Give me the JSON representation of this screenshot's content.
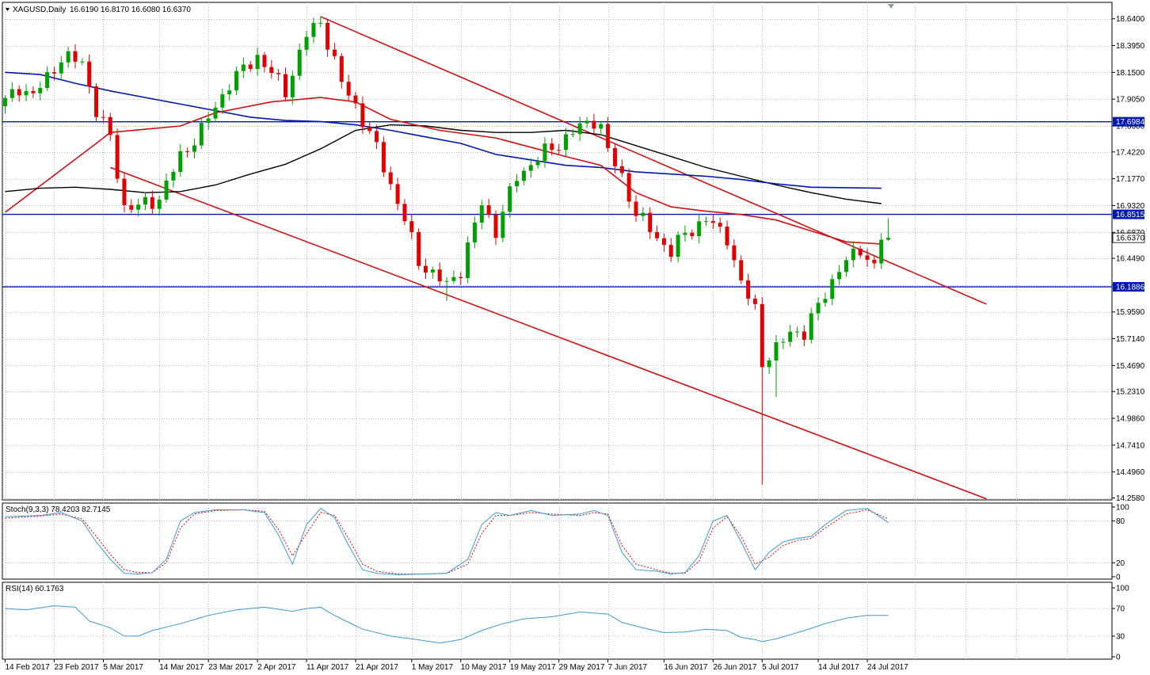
{
  "header": {
    "symbol": "XAGUSD,Daily",
    "ohlc": "16.6190 16.8170 16.6080 16.6370",
    "stoch_label": "Stoch(9,3,3) 78.4203 82.7145",
    "rsi_label": "RSI(14) 60.1763"
  },
  "colors": {
    "bull": "#00a000",
    "bear": "#e00000",
    "ma_red": "#d01010",
    "ma_blue": "#0018b0",
    "ma_black": "#000000",
    "hline": "#0018b0",
    "trend": "#d01010",
    "grid": "#b8b8b8"
  },
  "chart_data": {
    "type": "candlestick",
    "price_ticks": [
      "18.6400",
      "18.3950",
      "18.1500",
      "17.9050",
      "17.6600",
      "17.4220",
      "17.1770",
      "16.9320",
      "16.6870",
      "16.4490",
      "16.2040",
      "15.9590",
      "15.7140",
      "15.4690",
      "15.2310",
      "14.9860",
      "14.7410",
      "14.4960",
      "14.2580"
    ],
    "price_range": [
      14.24,
      18.79
    ],
    "level_labels": [
      {
        "label": "17.6984",
        "value": 17.6984
      },
      {
        "label": "16.8515",
        "value": 16.8515
      },
      {
        "label": "16.1886",
        "value": 16.1886
      }
    ],
    "current_price": {
      "label": "16.6370",
      "value": 16.637
    },
    "date_labels": [
      {
        "label": "14 Feb 2017",
        "i": 0
      },
      {
        "label": "23 Feb 2017",
        "i": 7
      },
      {
        "label": "5 Mar 2017",
        "i": 14
      },
      {
        "label": "14 Mar 2017",
        "i": 22
      },
      {
        "label": "23 Mar 2017",
        "i": 29
      },
      {
        "label": "2 Apr 2017",
        "i": 36
      },
      {
        "label": "11 Apr 2017",
        "i": 43
      },
      {
        "label": "21 Apr 2017",
        "i": 50
      },
      {
        "label": "1 May 2017",
        "i": 58
      },
      {
        "label": "10 May 2017",
        "i": 65
      },
      {
        "label": "19 May 2017",
        "i": 72
      },
      {
        "label": "29 May 2017",
        "i": 79
      },
      {
        "label": "7 Jun 2017",
        "i": 86
      },
      {
        "label": "16 Jun 2017",
        "i": 94
      },
      {
        "label": "26 Jun 2017",
        "i": 101
      },
      {
        "label": "5 Jul 2017",
        "i": 108
      },
      {
        "label": "14 Jul 2017",
        "i": 116
      },
      {
        "label": "24 Jul 2017",
        "i": 123
      }
    ],
    "anchors": [
      [
        0,
        17.88
      ],
      [
        2,
        18.02
      ],
      [
        4,
        17.93
      ],
      [
        8,
        18.28
      ],
      [
        11,
        18.25
      ],
      [
        13,
        17.8
      ],
      [
        15,
        17.55
      ],
      [
        17,
        16.92
      ],
      [
        19,
        16.92
      ],
      [
        22,
        17.0
      ],
      [
        25,
        17.38
      ],
      [
        28,
        17.62
      ],
      [
        32,
        18.05
      ],
      [
        36,
        18.3
      ],
      [
        40,
        17.98
      ],
      [
        43,
        18.49
      ],
      [
        45,
        18.62
      ],
      [
        48,
        18.05
      ],
      [
        50,
        17.85
      ],
      [
        53,
        17.45
      ],
      [
        57,
        16.8
      ],
      [
        59,
        16.42
      ],
      [
        63,
        16.2
      ],
      [
        65,
        16.35
      ],
      [
        68,
        16.95
      ],
      [
        70,
        16.7
      ],
      [
        73,
        17.2
      ],
      [
        77,
        17.42
      ],
      [
        79,
        17.5
      ],
      [
        82,
        17.65
      ],
      [
        84,
        17.72
      ],
      [
        85,
        17.65
      ],
      [
        86,
        17.42
      ],
      [
        88,
        17.2
      ],
      [
        90,
        16.85
      ],
      [
        92,
        16.72
      ],
      [
        95,
        16.5
      ],
      [
        97,
        16.68
      ],
      [
        100,
        16.8
      ],
      [
        103,
        16.65
      ],
      [
        105,
        16.2
      ],
      [
        107,
        16.0
      ],
      [
        108,
        15.5
      ],
      [
        110,
        15.6
      ],
      [
        112,
        15.8
      ],
      [
        114,
        15.75
      ],
      [
        117,
        16.15
      ],
      [
        120,
        16.42
      ],
      [
        122,
        16.55
      ],
      [
        124,
        16.35
      ],
      [
        125,
        16.619
      ],
      [
        126,
        16.637
      ]
    ],
    "extremes": [
      {
        "i": 45,
        "high": 18.66
      },
      {
        "i": 108,
        "low": 14.38
      },
      {
        "i": 110,
        "low": 15.18
      },
      {
        "i": 63,
        "low": 16.06
      }
    ],
    "horizontal_levels": [
      17.6984,
      16.8515,
      16.1886
    ],
    "trendlines": [
      {
        "from": [
          45,
          18.66
        ],
        "to": [
          140,
          16.03
        ]
      },
      {
        "from": [
          15,
          17.28
        ],
        "to": [
          140,
          14.25
        ]
      },
      {
        "from": [
          0,
          16.87
        ],
        "to": [
          13,
          17.5
        ]
      }
    ],
    "ma_red_anchors": [
      [
        13,
        17.5
      ],
      [
        15,
        17.6
      ],
      [
        25,
        17.66
      ],
      [
        30,
        17.78
      ],
      [
        38,
        17.88
      ],
      [
        45,
        17.92
      ],
      [
        50,
        17.88
      ],
      [
        55,
        17.72
      ],
      [
        62,
        17.62
      ],
      [
        70,
        17.55
      ],
      [
        80,
        17.38
      ],
      [
        85,
        17.3
      ],
      [
        90,
        17.05
      ],
      [
        95,
        16.92
      ],
      [
        100,
        16.88
      ],
      [
        105,
        16.85
      ],
      [
        110,
        16.8
      ],
      [
        115,
        16.7
      ],
      [
        120,
        16.6
      ],
      [
        125,
        16.58
      ]
    ],
    "ma_blue_anchors": [
      [
        0,
        18.15
      ],
      [
        5,
        18.13
      ],
      [
        10,
        18.05
      ],
      [
        15,
        17.98
      ],
      [
        20,
        17.92
      ],
      [
        25,
        17.86
      ],
      [
        30,
        17.8
      ],
      [
        35,
        17.74
      ],
      [
        40,
        17.71
      ],
      [
        45,
        17.7
      ],
      [
        50,
        17.67
      ],
      [
        55,
        17.62
      ],
      [
        60,
        17.56
      ],
      [
        65,
        17.5
      ],
      [
        70,
        17.4
      ],
      [
        75,
        17.35
      ],
      [
        80,
        17.3
      ],
      [
        85,
        17.28
      ],
      [
        90,
        17.24
      ],
      [
        95,
        17.22
      ],
      [
        100,
        17.2
      ],
      [
        105,
        17.17
      ],
      [
        110,
        17.13
      ],
      [
        115,
        17.1
      ],
      [
        125,
        17.09
      ]
    ],
    "ma_black_anchors": [
      [
        0,
        17.06
      ],
      [
        5,
        17.09
      ],
      [
        10,
        17.1
      ],
      [
        15,
        17.08
      ],
      [
        20,
        17.05
      ],
      [
        25,
        17.06
      ],
      [
        30,
        17.12
      ],
      [
        35,
        17.22
      ],
      [
        40,
        17.31
      ],
      [
        45,
        17.45
      ],
      [
        50,
        17.62
      ],
      [
        55,
        17.67
      ],
      [
        60,
        17.66
      ],
      [
        65,
        17.62
      ],
      [
        70,
        17.6
      ],
      [
        75,
        17.6
      ],
      [
        80,
        17.62
      ],
      [
        85,
        17.58
      ],
      [
        90,
        17.48
      ],
      [
        95,
        17.38
      ],
      [
        100,
        17.28
      ],
      [
        105,
        17.2
      ],
      [
        110,
        17.12
      ],
      [
        115,
        17.05
      ],
      [
        120,
        16.99
      ],
      [
        125,
        16.95
      ]
    ],
    "stoch": {
      "label": "Stoch(9,3,3)",
      "k": 78.4203,
      "d": 82.7145,
      "ticks": [
        "100",
        "80",
        "20",
        "0"
      ],
      "k_anchors": [
        [
          0,
          86
        ],
        [
          5,
          88
        ],
        [
          8,
          92
        ],
        [
          11,
          80
        ],
        [
          13,
          50
        ],
        [
          15,
          25
        ],
        [
          17,
          5
        ],
        [
          19,
          4
        ],
        [
          21,
          6
        ],
        [
          23,
          25
        ],
        [
          25,
          80
        ],
        [
          27,
          92
        ],
        [
          30,
          96
        ],
        [
          34,
          96
        ],
        [
          37,
          92
        ],
        [
          39,
          60
        ],
        [
          41,
          18
        ],
        [
          43,
          75
        ],
        [
          45,
          98
        ],
        [
          47,
          85
        ],
        [
          49,
          45
        ],
        [
          51,
          10
        ],
        [
          53,
          5
        ],
        [
          56,
          3
        ],
        [
          60,
          4
        ],
        [
          63,
          5
        ],
        [
          66,
          25
        ],
        [
          68,
          75
        ],
        [
          70,
          92
        ],
        [
          72,
          88
        ],
        [
          75,
          95
        ],
        [
          78,
          88
        ],
        [
          82,
          90
        ],
        [
          84,
          95
        ],
        [
          86,
          88
        ],
        [
          88,
          35
        ],
        [
          90,
          10
        ],
        [
          93,
          8
        ],
        [
          95,
          4
        ],
        [
          97,
          6
        ],
        [
          99,
          30
        ],
        [
          101,
          80
        ],
        [
          103,
          88
        ],
        [
          105,
          50
        ],
        [
          107,
          10
        ],
        [
          109,
          35
        ],
        [
          111,
          50
        ],
        [
          113,
          55
        ],
        [
          115,
          58
        ],
        [
          117,
          75
        ],
        [
          120,
          95
        ],
        [
          123,
          98
        ],
        [
          126,
          78
        ]
      ],
      "d_anchors": [
        [
          0,
          84
        ],
        [
          5,
          87
        ],
        [
          8,
          90
        ],
        [
          11,
          83
        ],
        [
          13,
          58
        ],
        [
          15,
          32
        ],
        [
          17,
          10
        ],
        [
          19,
          6
        ],
        [
          21,
          6
        ],
        [
          23,
          20
        ],
        [
          25,
          70
        ],
        [
          27,
          90
        ],
        [
          30,
          95
        ],
        [
          34,
          96
        ],
        [
          37,
          94
        ],
        [
          39,
          68
        ],
        [
          41,
          30
        ],
        [
          43,
          62
        ],
        [
          45,
          92
        ],
        [
          47,
          88
        ],
        [
          49,
          55
        ],
        [
          51,
          18
        ],
        [
          53,
          8
        ],
        [
          56,
          4
        ],
        [
          60,
          4
        ],
        [
          63,
          5
        ],
        [
          66,
          18
        ],
        [
          68,
          62
        ],
        [
          70,
          88
        ],
        [
          72,
          88
        ],
        [
          75,
          92
        ],
        [
          78,
          90
        ],
        [
          82,
          88
        ],
        [
          84,
          92
        ],
        [
          86,
          90
        ],
        [
          88,
          45
        ],
        [
          90,
          18
        ],
        [
          93,
          10
        ],
        [
          95,
          5
        ],
        [
          97,
          5
        ],
        [
          99,
          22
        ],
        [
          101,
          70
        ],
        [
          103,
          86
        ],
        [
          105,
          58
        ],
        [
          107,
          18
        ],
        [
          109,
          28
        ],
        [
          111,
          45
        ],
        [
          113,
          52
        ],
        [
          115,
          55
        ],
        [
          117,
          70
        ],
        [
          120,
          90
        ],
        [
          123,
          96
        ],
        [
          126,
          83
        ]
      ]
    },
    "rsi": {
      "label": "RSI(14)",
      "value": 60.1763,
      "ticks": [
        "100",
        "70",
        "30",
        "0"
      ],
      "anchors": [
        [
          0,
          70
        ],
        [
          3,
          68
        ],
        [
          7,
          74
        ],
        [
          10,
          72
        ],
        [
          12,
          52
        ],
        [
          15,
          42
        ],
        [
          17,
          30
        ],
        [
          19,
          30
        ],
        [
          21,
          38
        ],
        [
          25,
          48
        ],
        [
          29,
          60
        ],
        [
          33,
          68
        ],
        [
          37,
          72
        ],
        [
          41,
          66
        ],
        [
          43,
          70
        ],
        [
          45,
          72
        ],
        [
          47,
          60
        ],
        [
          49,
          50
        ],
        [
          51,
          40
        ],
        [
          55,
          30
        ],
        [
          58,
          26
        ],
        [
          62,
          20
        ],
        [
          65,
          25
        ],
        [
          68,
          38
        ],
        [
          71,
          48
        ],
        [
          74,
          55
        ],
        [
          78,
          58
        ],
        [
          82,
          65
        ],
        [
          86,
          62
        ],
        [
          88,
          50
        ],
        [
          91,
          42
        ],
        [
          94,
          35
        ],
        [
          97,
          36
        ],
        [
          100,
          40
        ],
        [
          103,
          38
        ],
        [
          105,
          28
        ],
        [
          107,
          25
        ],
        [
          108,
          22
        ],
        [
          110,
          26
        ],
        [
          112,
          32
        ],
        [
          114,
          38
        ],
        [
          117,
          48
        ],
        [
          120,
          56
        ],
        [
          123,
          60
        ],
        [
          126,
          60
        ]
      ]
    }
  }
}
